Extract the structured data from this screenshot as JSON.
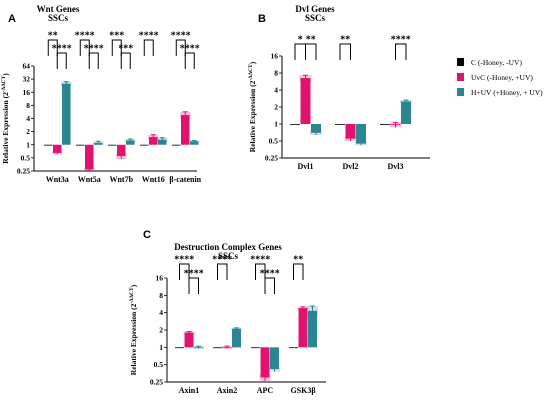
{
  "colors": {
    "C": "#000000",
    "UvC": "#e2136e",
    "HUV": "#2b8592"
  },
  "legend": [
    {
      "key": "C",
      "label": "C (-Honey, -UV)"
    },
    {
      "key": "UvC",
      "label": "UvC (-Honey, +UV)"
    },
    {
      "key": "HUV",
      "label": "H+UV (+Honey, + UV)"
    }
  ],
  "chart_data": [
    {
      "panel": "A",
      "type": "bar",
      "title": "Wnt Genes",
      "subtitle": "SSCs",
      "ylabel": "Relative Expression (2^-ΔΔCT)",
      "yscale": "log2",
      "ylim": [
        0.25,
        64
      ],
      "yticks": [
        "0.25",
        "0.5",
        "1",
        "2",
        "4",
        "8",
        "16",
        "32",
        "64"
      ],
      "categories": [
        "Wnt3a",
        "Wnt5a",
        "Wnt7b",
        "Wnt16",
        "β-catenin"
      ],
      "series": [
        {
          "key": "C",
          "values": [
            1,
            1,
            1,
            1,
            1
          ],
          "err": [
            0,
            0,
            0,
            0,
            0
          ]
        },
        {
          "key": "UvC",
          "values": [
            0.65,
            0.27,
            0.55,
            1.5,
            4.8
          ],
          "err": [
            0.05,
            0.02,
            0.08,
            0.2,
            0.9
          ]
        },
        {
          "key": "HUV",
          "values": [
            25,
            1.1,
            1.25,
            1.3,
            1.2
          ],
          "err": [
            3,
            0.1,
            0.1,
            0.15,
            0.05
          ]
        }
      ],
      "sig": [
        {
          "cat": 0,
          "from": 0,
          "to": 1,
          "label": "**"
        },
        {
          "cat": 0,
          "from": 1,
          "to": 2,
          "label": "****"
        },
        {
          "cat": 1,
          "from": 0,
          "to": 1,
          "label": "****"
        },
        {
          "cat": 1,
          "from": 1,
          "to": 2,
          "label": "****"
        },
        {
          "cat": 2,
          "from": 0,
          "to": 1,
          "label": "***"
        },
        {
          "cat": 2,
          "from": 1,
          "to": 2,
          "label": "***"
        },
        {
          "cat": 3,
          "from": 0,
          "to": 1,
          "label": "****"
        },
        {
          "cat": 4,
          "from": 0,
          "to": 1,
          "label": "****"
        },
        {
          "cat": 4,
          "from": 1,
          "to": 2,
          "label": "****"
        }
      ]
    },
    {
      "panel": "B",
      "type": "bar",
      "title": "Dvl Genes",
      "subtitle": "SSCs",
      "ylabel": "Relative Expression (2^-ΔΔCT)",
      "yscale": "log2",
      "ylim": [
        0.25,
        16
      ],
      "yticks": [
        "0.25",
        "0.5",
        "1",
        "2",
        "4",
        "8",
        "16"
      ],
      "categories": [
        "Dvl1",
        "Dvl2",
        "Dvl3"
      ],
      "series": [
        {
          "key": "C",
          "values": [
            1,
            1,
            1
          ],
          "err": [
            0,
            0,
            0
          ]
        },
        {
          "key": "UvC",
          "values": [
            6.5,
            0.55,
            0.97
          ],
          "err": [
            0.8,
            0.05,
            0.1
          ]
        },
        {
          "key": "HUV",
          "values": [
            0.7,
            0.45,
            2.5
          ],
          "err": [
            0.06,
            0.03,
            0.15
          ]
        }
      ],
      "sig": [
        {
          "cat": 0,
          "from": 0,
          "to": 1,
          "label": "*"
        },
        {
          "cat": 0,
          "from": 1,
          "to": 2,
          "label": "**"
        },
        {
          "cat": 1,
          "from": 0,
          "to": 1,
          "label": "**"
        },
        {
          "cat": 2,
          "from": 1,
          "to": 2,
          "label": "****"
        }
      ]
    },
    {
      "panel": "C",
      "type": "bar",
      "title": "Destruction Complex Genes",
      "subtitle": "SSCs",
      "ylabel": "Relative Expression (2^-ΔΔCT)",
      "yscale": "log2",
      "ylim": [
        0.25,
        16
      ],
      "yticks": [
        "0.25",
        "0.5",
        "1",
        "2",
        "4",
        "8",
        "16"
      ],
      "categories": [
        "Axin1",
        "Axin2",
        "APC",
        "GSK3β"
      ],
      "series": [
        {
          "key": "C",
          "values": [
            1,
            1,
            1,
            1
          ],
          "err": [
            0,
            0,
            0,
            0
          ]
        },
        {
          "key": "UvC",
          "values": [
            1.8,
            1,
            0.3,
            4.8
          ],
          "err": [
            0.08,
            0.05,
            0.04,
            0.25
          ]
        },
        {
          "key": "HUV",
          "values": [
            1,
            2.1,
            0.42,
            4.3
          ],
          "err": [
            0.05,
            0.08,
            0.04,
            0.9
          ]
        }
      ],
      "sig": [
        {
          "cat": 0,
          "from": 0,
          "to": 1,
          "label": "****"
        },
        {
          "cat": 0,
          "from": 1,
          "to": 2,
          "label": "****"
        },
        {
          "cat": 1,
          "from": 0,
          "to": 1,
          "label": "****"
        },
        {
          "cat": 2,
          "from": 0,
          "to": 1,
          "label": "****"
        },
        {
          "cat": 2,
          "from": 1,
          "to": 2,
          "label": "****"
        },
        {
          "cat": 3,
          "from": 0,
          "to": 1,
          "label": "**"
        }
      ]
    }
  ]
}
